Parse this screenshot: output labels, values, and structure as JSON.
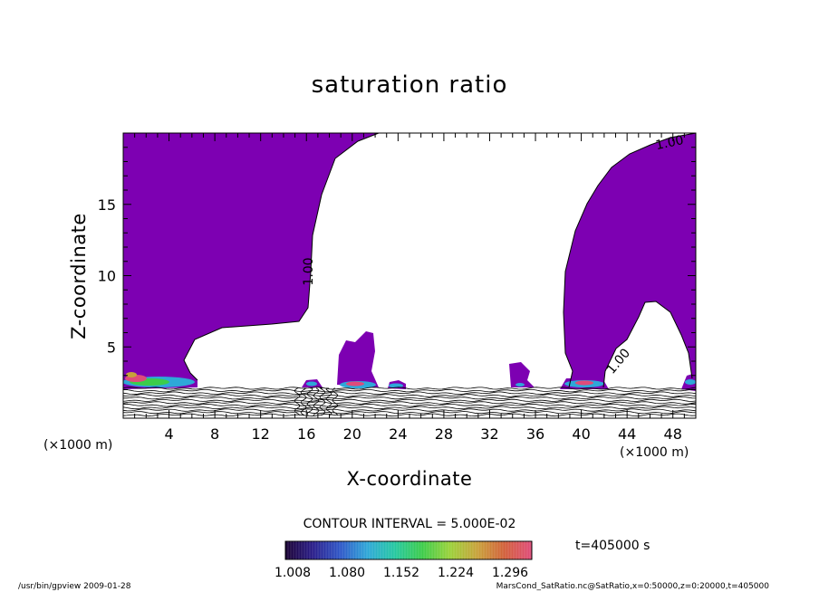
{
  "chart_data": {
    "type": "contour",
    "title": "saturation ratio",
    "xlabel": "X-coordinate",
    "ylabel": "Z-coordinate",
    "x_unit": "(×1000 m)",
    "x_ticks": [
      4,
      8,
      12,
      16,
      20,
      24,
      28,
      32,
      36,
      40,
      44,
      48
    ],
    "y_ticks": [
      5,
      10,
      15
    ],
    "xlim": [
      0,
      50
    ],
    "ylim": [
      0,
      20
    ],
    "contour_interval_label": "CONTOUR INTERVAL = 5.000E-02",
    "contour_label": "1.00",
    "colorbar": {
      "tick_labels": [
        "1.008",
        "1.080",
        "1.152",
        "1.224",
        "1.296"
      ],
      "colors": [
        "#1a0033",
        "#2a1d8a",
        "#2f57c8",
        "#2ea8d8",
        "#25c8a0",
        "#3ccc4a",
        "#9ad23a",
        "#c8a23a",
        "#d2603a",
        "#e04b7a"
      ]
    },
    "fill_color": "#7d00b2",
    "time_label": "t=405000 s",
    "footer_left": "/usr/bin/gpview  2009-01-28",
    "footer_right": "MarsCond_SatRatio.nc@SatRatio,x=0:50000,z=0:20000,t=405000"
  }
}
